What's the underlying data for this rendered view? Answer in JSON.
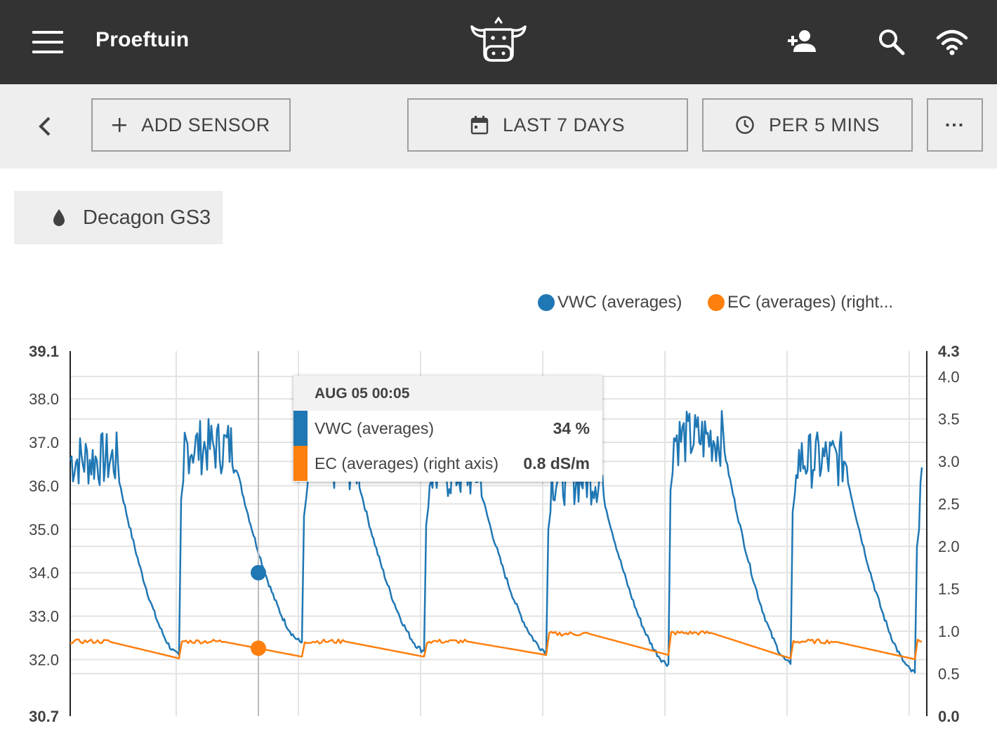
{
  "appbar": {
    "title": "Proeftuin",
    "logo_icon": "cow-logo-icon",
    "icons": [
      "menu-icon",
      "add-person-icon",
      "search-icon",
      "wifi-icon"
    ]
  },
  "toolbar": {
    "add_sensor": "ADD SENSOR",
    "date_range": "LAST 7 DAYS",
    "interval": "PER 5 MINS",
    "more": "···"
  },
  "sensor_chip": {
    "label": "Decagon GS3",
    "icon": "water-drop-icon"
  },
  "colors": {
    "vwc": "#1f77b4",
    "ec": "#ff7f0e",
    "appbar": "#333333",
    "toolbar": "#eeeeee"
  },
  "tooltip": {
    "title": "AUG 05 00:05",
    "rows": [
      {
        "label": "VWC (averages)",
        "value": "34 %"
      },
      {
        "label": "EC (averages) (right axis)",
        "value": "0.8 dS/m"
      }
    ]
  },
  "chart_data": {
    "type": "line",
    "legend": [
      "VWC (averages)",
      "EC (averages) (right..."
    ],
    "legend_position": "top-right",
    "grid": true,
    "y_left": {
      "min_label": "30.7",
      "max_label": "39.1",
      "ticks": [
        "39.1",
        "38.0",
        "37.0",
        "36.0",
        "35.0",
        "34.0",
        "33.0",
        "32.0",
        "30.7"
      ],
      "range": [
        30.7,
        39.1
      ]
    },
    "y_right": {
      "min_label": "0.0",
      "max_label": "4.3",
      "ticks": [
        "4.3",
        "4.0",
        "3.5",
        "3.0",
        "2.5",
        "2.0",
        "1.5",
        "1.0",
        "0.5",
        "0.0"
      ],
      "range": [
        0.0,
        4.3
      ]
    },
    "x_days": 7,
    "series": [
      {
        "name": "VWC (averages)",
        "axis": "left",
        "days": [
          {
            "peak": 37.0,
            "trough": 32.1,
            "start": 36.5
          },
          {
            "peak": 37.3,
            "trough": 32.4
          },
          {
            "peak": 36.9,
            "trough": 32.2
          },
          {
            "peak": 36.7,
            "trough": 32.2
          },
          {
            "peak": 36.6,
            "trough": 31.9
          },
          {
            "peak": 37.5,
            "trough": 31.9
          },
          {
            "peak": 37.0,
            "trough": 31.7
          },
          {
            "peak": 36.2
          }
        ]
      },
      {
        "name": "EC (averages) (right axis)",
        "axis": "right",
        "days": [
          {
            "start": 0.88,
            "end": 0.68
          },
          {
            "start": 0.88,
            "end": 0.7
          },
          {
            "start": 0.88,
            "end": 0.7
          },
          {
            "start": 0.88,
            "end": 0.72
          },
          {
            "start": 0.97,
            "end": 0.72
          },
          {
            "start": 0.98,
            "end": 0.68
          },
          {
            "start": 0.88,
            "end": 0.67
          },
          {
            "start": 0.88
          }
        ]
      }
    ],
    "highlight": {
      "label": "AUG 05 00:05",
      "vwc": 34,
      "ec": 0.8
    }
  }
}
